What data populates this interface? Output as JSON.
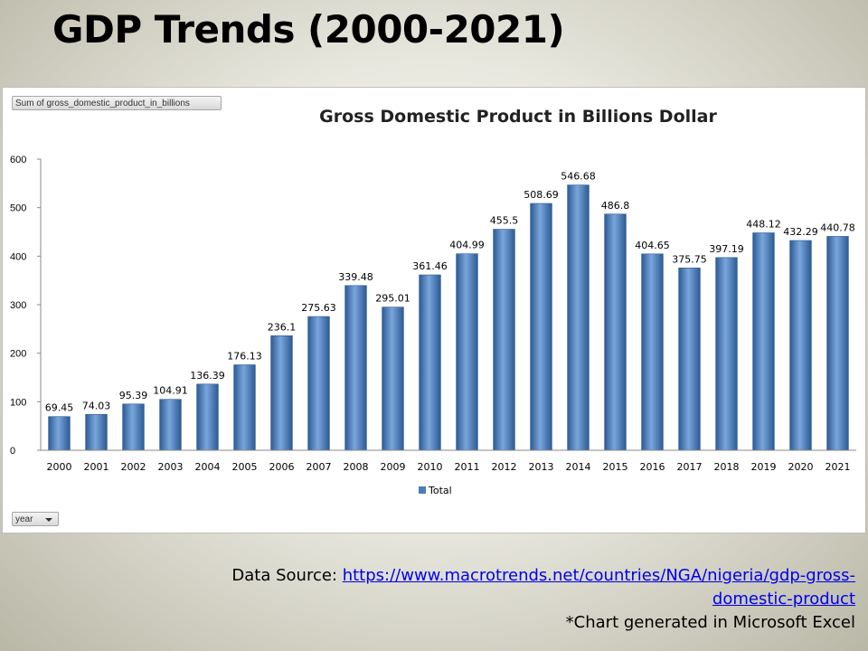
{
  "slide": {
    "title": "GDP Trends (2000-2021)"
  },
  "pivot": {
    "field_button": "Sum of gross_domestic_product_in_billions",
    "year_dropdown": "year"
  },
  "footer": {
    "source_label": "Data Source: ",
    "source_link_line1": "https://www.macrotrends.net/countries/NGA/nigeria/gdp-gross-",
    "source_link_line2": "domestic-product",
    "note": "*Chart generated in Microsoft Excel"
  },
  "colors": {
    "bar_fill": "#4a7ebb",
    "bar_highlight": "#7aa6dc",
    "bar_shadow": "#2c5a94"
  },
  "chart_data": {
    "type": "bar",
    "title": "Gross Domestic Product in Billions Dollar",
    "xlabel": "",
    "ylabel": "",
    "categories": [
      "2000",
      "2001",
      "2002",
      "2003",
      "2004",
      "2005",
      "2006",
      "2007",
      "2008",
      "2009",
      "2010",
      "2011",
      "2012",
      "2013",
      "2014",
      "2015",
      "2016",
      "2017",
      "2018",
      "2019",
      "2020",
      "2021"
    ],
    "series": [
      {
        "name": "Total",
        "values": [
          69.45,
          74.03,
          95.39,
          104.91,
          136.39,
          176.13,
          236.1,
          275.63,
          339.48,
          295.01,
          361.46,
          404.99,
          455.5,
          508.69,
          546.68,
          486.8,
          404.65,
          375.75,
          397.19,
          448.12,
          432.29,
          440.78
        ]
      }
    ],
    "data_labels": [
      "69.45",
      "74.03",
      "95.39",
      "104.91",
      "136.39",
      "176.13",
      "236.1",
      "275.63",
      "339.48",
      "295.01",
      "361.46",
      "404.99",
      "455.5",
      "508.69",
      "546.68",
      "486.8",
      "404.65",
      "375.75",
      "397.19",
      "448.12",
      "432.29",
      "440.78"
    ],
    "ylim": [
      0,
      600
    ],
    "yticks": [
      "0",
      "100",
      "200",
      "300",
      "400",
      "500",
      "600"
    ],
    "legend": {
      "position": "bottom",
      "entries": [
        "Total"
      ]
    },
    "grid": false
  }
}
